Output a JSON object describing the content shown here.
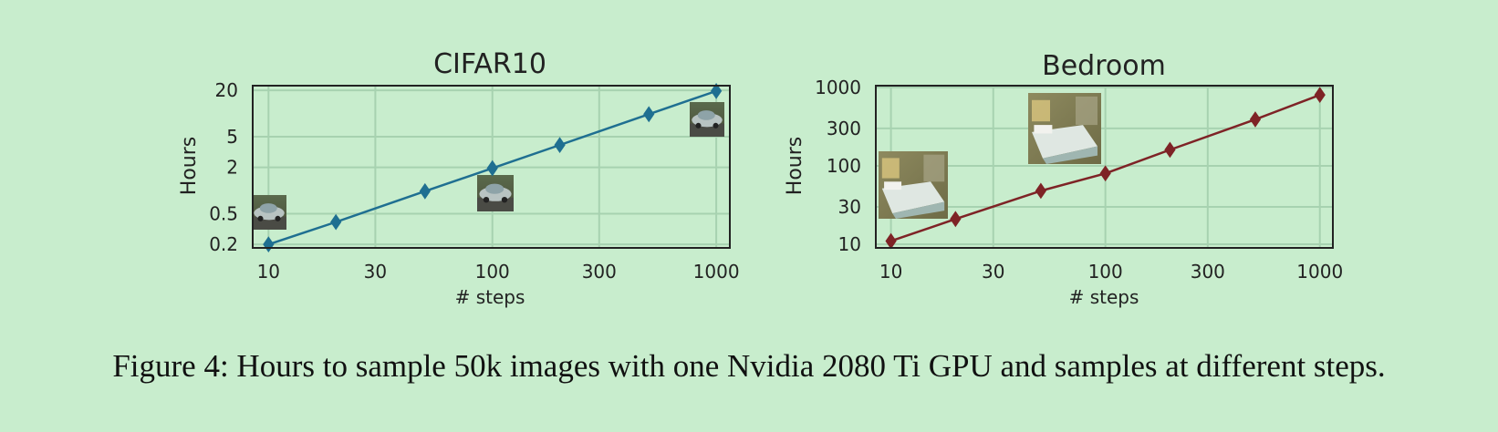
{
  "caption": "Figure 4: Hours to sample 50k images with one Nvidia 2080 Ti GPU and samples at different steps.",
  "colors": {
    "background": "#c8edcd",
    "grid": "#a7d2b0",
    "axes": "#222222",
    "cifar_series": "#1f6f91",
    "bedroom_series": "#7e2326"
  },
  "chart_data": [
    {
      "type": "line",
      "title": "CIFAR10",
      "xlabel": "# steps",
      "ylabel": "Hours",
      "xscale": "log",
      "yscale": "log",
      "xlim": [
        8.5,
        1150
      ],
      "ylim": [
        0.18,
        23
      ],
      "xticks": [
        10,
        30,
        100,
        300,
        1000
      ],
      "xtick_labels": [
        "10",
        "30",
        "100",
        "300",
        "1000"
      ],
      "yticks": [
        0.2,
        0.5,
        2,
        5,
        20
      ],
      "ytick_labels": [
        "0.2",
        "0.5",
        "2",
        "5",
        "20"
      ],
      "grid": true,
      "marker": "diamond",
      "x": [
        10,
        20,
        50,
        100,
        200,
        500,
        1000
      ],
      "y": [
        0.2,
        0.39,
        0.98,
        1.95,
        3.9,
        9.8,
        19.6
      ],
      "images": [
        {
          "subject": "car sample",
          "at_steps": 10
        },
        {
          "subject": "car sample",
          "at_steps": 100
        },
        {
          "subject": "car sample",
          "at_steps": 1000
        }
      ]
    },
    {
      "type": "line",
      "title": "Bedroom",
      "xlabel": "# steps",
      "ylabel": "Hours",
      "xscale": "log",
      "yscale": "log",
      "xlim": [
        8.5,
        1150
      ],
      "ylim": [
        9,
        1050
      ],
      "xticks": [
        10,
        30,
        100,
        300,
        1000
      ],
      "xtick_labels": [
        "10",
        "30",
        "100",
        "300",
        "1000"
      ],
      "yticks": [
        10,
        30,
        100,
        300,
        1000
      ],
      "ytick_labels": [
        "10",
        "30",
        "100",
        "300",
        "1000"
      ],
      "grid": true,
      "marker": "diamond",
      "x": [
        10,
        20,
        50,
        100,
        200,
        500,
        1000
      ],
      "y": [
        11,
        21,
        48,
        80,
        160,
        390,
        800
      ],
      "images": [
        {
          "subject": "bedroom sample",
          "at_steps": 10
        },
        {
          "subject": "bedroom sample",
          "at_steps": 100
        }
      ]
    }
  ]
}
